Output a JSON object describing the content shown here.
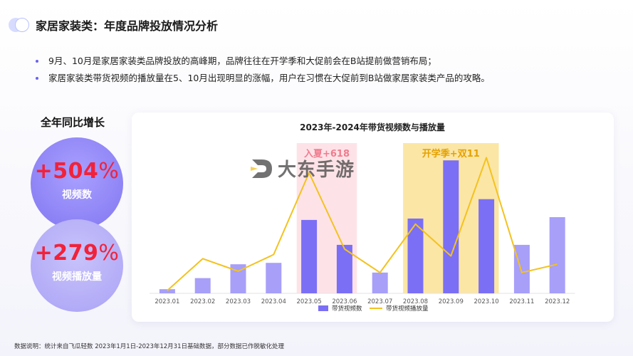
{
  "header": {
    "title": "家居家装类：年度品牌投放情况分析"
  },
  "bullets": [
    "9月、10月是家居家装类品牌投放的高峰期，品牌往往在开学季和大促前会在B站提前做营销布局；",
    "家居家装类带货视频的播放量在5、10月出现明显的涨幅，用户在习惯在大促前到B站做家居家装类产品的攻略。"
  ],
  "growth": {
    "title": "全年同比增长",
    "items": [
      {
        "value": "+504",
        "unit": "%",
        "label": "视频数"
      },
      {
        "value": "+279",
        "unit": "%",
        "label": "视频播放量"
      }
    ]
  },
  "watermark": {
    "text": "大东手游"
  },
  "footnote": "数据说明：统计来自飞瓜轻数 2023年1月1日-2023年12月31日基础数据，部分数据已作脱敏化处理",
  "colors": {
    "bar": "#7b6ff5",
    "bar_light": "#a79ff8",
    "line": "#f4c21e",
    "highlight_pink": "#fde3e7",
    "highlight_yellow": "#fbe6a6",
    "pink_text": "#f07b8e",
    "yellow_text": "#e5a100",
    "accent_red": "#f1223a"
  },
  "chart_data": {
    "type": "bar",
    "title": "2023年-2024年带货视频数与播放量",
    "categories": [
      "2023.01",
      "2023.02",
      "2023.03",
      "2023.04",
      "2023.05",
      "2023.06",
      "2023.07",
      "2023.08",
      "2023.09",
      "2023.10",
      "2023.11",
      "2023.12"
    ],
    "series": [
      {
        "name": "带货视频数",
        "kind": "bar",
        "values": [
          3,
          11,
          21,
          22,
          53,
          35,
          15,
          54,
          96,
          68,
          35,
          55
        ]
      },
      {
        "name": "带货视频播放量",
        "kind": "line",
        "values": [
          2,
          25,
          16,
          28,
          87,
          32,
          15,
          50,
          27,
          98,
          15,
          21
        ]
      }
    ],
    "ylim": [
      0,
      110
    ],
    "highlights": [
      {
        "label": "入夏+618",
        "from": "2023.05",
        "to": "2023.06",
        "color": "pink"
      },
      {
        "label": "开学季+双11",
        "from": "2023.08",
        "to": "2023.10",
        "color": "yellow"
      }
    ],
    "xlabel": "",
    "ylabel": "",
    "grid": false,
    "legend": "bottom"
  }
}
